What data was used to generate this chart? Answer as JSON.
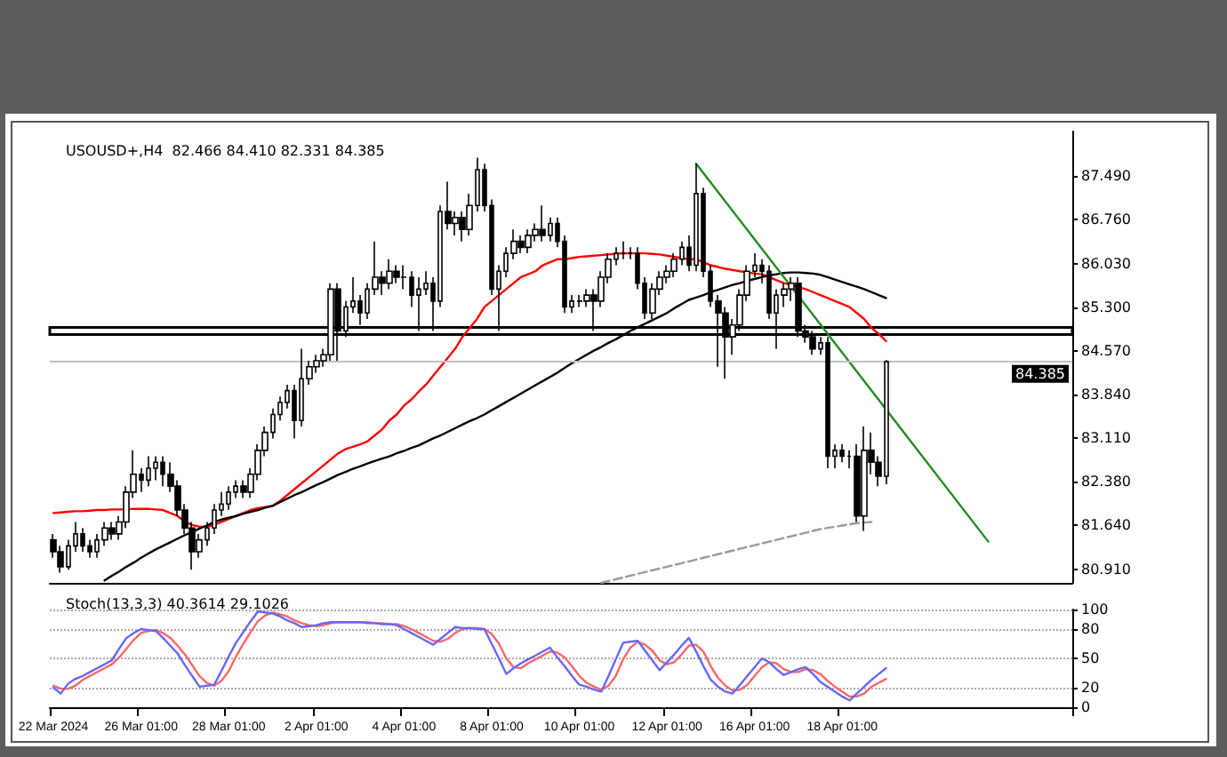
{
  "chart_data": [
    {
      "type": "candlestick",
      "title": "USOUSD+,H4  82.466 84.410 82.331 84.385",
      "categories": [
        null,
        null,
        null,
        null,
        null,
        null,
        null,
        null,
        null,
        null,
        null,
        null,
        null,
        null,
        null,
        null,
        null,
        null,
        null,
        null,
        null,
        null,
        null,
        null,
        null,
        null,
        null,
        null,
        null,
        null,
        null,
        null,
        null,
        null,
        null,
        null,
        null,
        null,
        null,
        null,
        null,
        null,
        null,
        null,
        null,
        null,
        null,
        null,
        null,
        null,
        null,
        null,
        null,
        null,
        null,
        null,
        null,
        null,
        null,
        null,
        null,
        null,
        null,
        null,
        null,
        null,
        null,
        null,
        null,
        null,
        null,
        null,
        null,
        null,
        null,
        null,
        null,
        null,
        null,
        null,
        null,
        null,
        null,
        null,
        null,
        null,
        null,
        null,
        null,
        null,
        null,
        null,
        null,
        null,
        null,
        null,
        null,
        null,
        null,
        null,
        null,
        null,
        null,
        null,
        null,
        null,
        null,
        null,
        null,
        null,
        null,
        null,
        null,
        null,
        null,
        null,
        null,
        null,
        null,
        null,
        null,
        null,
        null,
        null,
        null,
        null,
        null,
        null,
        null,
        null,
        null,
        null,
        null,
        null,
        null,
        null,
        null,
        null,
        null,
        null
      ],
      "ohlc": [
        [
          81.4,
          81.5,
          81.1,
          81.2
        ],
        [
          81.2,
          81.3,
          80.85,
          80.95
        ],
        [
          80.95,
          81.4,
          80.9,
          81.3
        ],
        [
          81.3,
          81.7,
          81.2,
          81.5
        ],
        [
          81.5,
          81.6,
          81.2,
          81.3
        ],
        [
          81.3,
          81.4,
          81.1,
          81.2
        ],
        [
          81.2,
          81.5,
          81.1,
          81.4
        ],
        [
          81.4,
          81.7,
          81.3,
          81.6
        ],
        [
          81.6,
          81.7,
          81.4,
          81.5
        ],
        [
          81.5,
          81.8,
          81.4,
          81.7
        ],
        [
          81.7,
          82.3,
          81.6,
          82.2
        ],
        [
          82.2,
          82.9,
          82.1,
          82.5
        ],
        [
          82.5,
          82.6,
          82.2,
          82.4
        ],
        [
          82.4,
          82.8,
          82.3,
          82.6
        ],
        [
          82.6,
          82.8,
          82.4,
          82.7
        ],
        [
          82.7,
          82.8,
          82.3,
          82.5
        ],
        [
          82.5,
          82.7,
          82.2,
          82.3
        ],
        [
          82.3,
          82.4,
          81.8,
          81.9
        ],
        [
          81.9,
          82.0,
          81.5,
          81.6
        ],
        [
          81.6,
          81.7,
          80.9,
          81.2
        ],
        [
          81.2,
          81.5,
          81.1,
          81.4
        ],
        [
          81.4,
          81.7,
          81.3,
          81.6
        ],
        [
          81.6,
          82.0,
          81.5,
          81.9
        ],
        [
          81.9,
          82.2,
          81.8,
          82.0
        ],
        [
          82.0,
          82.3,
          81.9,
          82.2
        ],
        [
          82.2,
          82.4,
          82.1,
          82.3
        ],
        [
          82.3,
          82.4,
          82.1,
          82.2
        ],
        [
          82.2,
          82.6,
          82.1,
          82.5
        ],
        [
          82.5,
          83.0,
          82.4,
          82.9
        ],
        [
          82.9,
          83.3,
          82.8,
          83.2
        ],
        [
          83.2,
          83.6,
          83.1,
          83.5
        ],
        [
          83.5,
          83.8,
          83.4,
          83.7
        ],
        [
          83.7,
          84.0,
          83.6,
          83.9
        ],
        [
          83.9,
          84.0,
          83.1,
          83.4
        ],
        [
          83.4,
          84.6,
          83.3,
          84.1
        ],
        [
          84.1,
          84.4,
          84.0,
          84.3
        ],
        [
          84.3,
          84.5,
          84.2,
          84.4
        ],
        [
          84.4,
          84.6,
          84.3,
          84.5
        ],
        [
          84.5,
          85.7,
          84.4,
          85.6
        ],
        [
          85.6,
          85.7,
          84.4,
          84.9
        ],
        [
          84.9,
          85.4,
          84.8,
          85.3
        ],
        [
          85.3,
          85.8,
          85.2,
          85.4
        ],
        [
          85.4,
          85.5,
          85.0,
          85.2
        ],
        [
          85.2,
          85.7,
          85.1,
          85.6
        ],
        [
          85.6,
          86.4,
          85.5,
          85.8
        ],
        [
          85.8,
          85.9,
          85.5,
          85.7
        ],
        [
          85.7,
          86.1,
          85.6,
          85.9
        ],
        [
          85.9,
          86.0,
          85.7,
          85.8
        ],
        [
          85.8,
          86.0,
          85.6,
          85.8
        ],
        [
          85.8,
          85.9,
          85.3,
          85.5
        ],
        [
          85.5,
          85.8,
          84.9,
          85.6
        ],
        [
          85.6,
          85.9,
          85.5,
          85.7
        ],
        [
          85.7,
          85.8,
          84.9,
          85.4
        ],
        [
          85.4,
          87.0,
          85.3,
          86.9
        ],
        [
          86.9,
          87.4,
          86.6,
          86.7
        ],
        [
          86.7,
          86.9,
          86.5,
          86.8
        ],
        [
          86.8,
          86.9,
          86.4,
          86.6
        ],
        [
          86.6,
          87.2,
          86.5,
          87.0
        ],
        [
          87.0,
          87.8,
          86.9,
          87.6
        ],
        [
          87.6,
          87.7,
          86.9,
          87.0
        ],
        [
          87.0,
          87.1,
          85.5,
          85.6
        ],
        [
          85.6,
          86.0,
          84.9,
          85.9
        ],
        [
          85.9,
          86.3,
          85.8,
          86.2
        ],
        [
          86.2,
          86.6,
          86.1,
          86.4
        ],
        [
          86.4,
          86.5,
          86.2,
          86.3
        ],
        [
          86.3,
          86.6,
          86.2,
          86.5
        ],
        [
          86.5,
          86.7,
          86.4,
          86.6
        ],
        [
          86.6,
          87.0,
          86.4,
          86.5
        ],
        [
          86.5,
          86.8,
          86.4,
          86.7
        ],
        [
          86.7,
          86.8,
          86.3,
          86.4
        ],
        [
          86.4,
          86.5,
          85.2,
          85.3
        ],
        [
          85.3,
          85.5,
          85.2,
          85.4
        ],
        [
          85.4,
          85.5,
          85.3,
          85.4
        ],
        [
          85.4,
          85.6,
          85.3,
          85.5
        ],
        [
          85.5,
          85.6,
          84.9,
          85.4
        ],
        [
          85.4,
          85.9,
          85.3,
          85.8
        ],
        [
          85.8,
          86.2,
          85.7,
          86.1
        ],
        [
          86.1,
          86.3,
          86.0,
          86.2
        ],
        [
          86.2,
          86.4,
          86.1,
          86.2
        ],
        [
          86.2,
          86.3,
          86.1,
          86.2
        ],
        [
          86.2,
          86.3,
          85.6,
          85.7
        ],
        [
          85.7,
          85.8,
          85.1,
          85.2
        ],
        [
          85.2,
          85.7,
          85.1,
          85.6
        ],
        [
          85.6,
          85.9,
          85.5,
          85.8
        ],
        [
          85.8,
          86.0,
          85.7,
          85.9
        ],
        [
          85.9,
          86.2,
          85.8,
          86.1
        ],
        [
          86.1,
          86.4,
          86.0,
          86.3
        ],
        [
          86.3,
          86.5,
          85.9,
          86.0
        ],
        [
          86.0,
          87.7,
          85.9,
          87.2
        ],
        [
          87.2,
          87.3,
          85.8,
          85.9
        ],
        [
          85.9,
          86.0,
          85.3,
          85.4
        ],
        [
          85.4,
          85.5,
          84.3,
          85.2
        ],
        [
          85.2,
          85.3,
          84.1,
          84.8
        ],
        [
          84.8,
          85.1,
          84.5,
          85.0
        ],
        [
          85.0,
          85.6,
          84.9,
          85.5
        ],
        [
          85.5,
          86.0,
          85.4,
          85.9
        ],
        [
          85.9,
          86.2,
          85.8,
          86.0
        ],
        [
          86.0,
          86.1,
          85.7,
          85.9
        ],
        [
          85.9,
          86.0,
          85.1,
          85.2
        ],
        [
          85.2,
          85.6,
          84.6,
          85.5
        ],
        [
          85.5,
          85.7,
          85.3,
          85.6
        ],
        [
          85.6,
          85.8,
          85.4,
          85.7
        ],
        [
          85.7,
          85.8,
          84.8,
          84.9
        ],
        [
          84.9,
          85.0,
          84.7,
          84.8
        ],
        [
          84.8,
          84.9,
          84.5,
          84.6
        ],
        [
          84.6,
          84.8,
          84.5,
          84.7
        ],
        [
          84.7,
          84.8,
          82.6,
          82.8
        ],
        [
          82.8,
          83.0,
          82.6,
          82.9
        ],
        [
          82.9,
          83.0,
          82.7,
          82.8
        ],
        [
          82.8,
          82.9,
          82.6,
          82.8
        ],
        [
          82.8,
          83.0,
          81.7,
          81.8
        ],
        [
          81.8,
          83.3,
          81.55,
          82.9
        ],
        [
          82.9,
          83.2,
          82.5,
          82.7
        ],
        [
          82.7,
          82.8,
          82.3,
          82.466
        ],
        [
          82.466,
          84.41,
          82.331,
          84.385
        ],
        null,
        null,
        null,
        null,
        null,
        null,
        null,
        null,
        null,
        null,
        null,
        null,
        null,
        null,
        null,
        null,
        null,
        null,
        null,
        null,
        null,
        null,
        null,
        null,
        null
      ],
      "series": [
        {
          "type": "line",
          "color": "#ff0000",
          "values": [
            81.85,
            81.86,
            81.87,
            81.88,
            81.88,
            81.89,
            81.9,
            81.9,
            81.91,
            81.91,
            81.91,
            81.92,
            81.92,
            81.92,
            81.91,
            81.9,
            81.85,
            81.8,
            81.7,
            81.65,
            81.62,
            81.62,
            81.65,
            81.7,
            81.75,
            81.8,
            81.85,
            81.9,
            81.93,
            81.95,
            81.97,
            82.05,
            82.15,
            82.25,
            82.35,
            82.45,
            82.55,
            82.65,
            82.75,
            82.85,
            82.92,
            82.96,
            83.0,
            83.05,
            83.15,
            83.25,
            83.4,
            83.5,
            83.65,
            83.75,
            83.88,
            84.0,
            84.15,
            84.3,
            84.45,
            84.6,
            84.8,
            84.95,
            85.1,
            85.3,
            85.4,
            85.5,
            85.6,
            85.7,
            85.8,
            85.85,
            85.9,
            86.0,
            86.05,
            86.1,
            86.1,
            86.12,
            86.14,
            86.15,
            86.16,
            86.17,
            86.18,
            86.19,
            86.2,
            86.2,
            86.2,
            86.2,
            86.19,
            86.18,
            86.16,
            86.14,
            86.12,
            86.1,
            86.1,
            86.05,
            86.0,
            85.97,
            85.94,
            85.92,
            85.9,
            85.88,
            85.86,
            85.85,
            85.8,
            85.75,
            85.7,
            85.67,
            85.63,
            85.6,
            85.55,
            85.5,
            85.45,
            85.4,
            85.35,
            85.3,
            85.2,
            85.1,
            84.95,
            84.85,
            84.73,
            null,
            null,
            null,
            null,
            null,
            null,
            null,
            null,
            null,
            null,
            null,
            null,
            null,
            null,
            null,
            null,
            null,
            null,
            null,
            null,
            null,
            null,
            null,
            null,
            null
          ]
        },
        {
          "type": "line",
          "color": "#000000",
          "values": [
            null,
            null,
            null,
            null,
            null,
            null,
            null,
            80.72,
            80.8,
            80.87,
            80.95,
            81.02,
            81.1,
            81.17,
            81.24,
            81.3,
            81.36,
            81.42,
            81.48,
            81.53,
            81.59,
            81.64,
            81.7,
            81.74,
            81.77,
            81.8,
            81.84,
            81.87,
            81.9,
            81.94,
            81.97,
            82.03,
            82.09,
            82.15,
            82.2,
            82.26,
            82.32,
            82.37,
            82.43,
            82.49,
            82.54,
            82.59,
            82.63,
            82.68,
            82.72,
            82.76,
            82.8,
            82.85,
            82.89,
            82.94,
            82.98,
            83.04,
            83.1,
            83.15,
            83.21,
            83.27,
            83.33,
            83.39,
            83.44,
            83.5,
            83.57,
            83.64,
            83.71,
            83.78,
            83.85,
            83.92,
            83.99,
            84.06,
            84.13,
            84.2,
            84.28,
            84.36,
            84.43,
            84.5,
            84.57,
            84.63,
            84.7,
            84.76,
            84.83,
            84.9,
            84.96,
            85.02,
            85.08,
            85.14,
            85.2,
            85.28,
            85.35,
            85.42,
            85.46,
            85.5,
            85.55,
            85.59,
            85.63,
            85.67,
            85.7,
            85.74,
            85.77,
            85.8,
            85.83,
            85.85,
            85.87,
            85.88,
            85.88,
            85.87,
            85.86,
            85.84,
            85.8,
            85.76,
            85.72,
            85.68,
            85.64,
            85.6,
            85.55,
            85.5,
            85.45,
            null,
            null,
            null,
            null,
            null,
            null,
            null,
            null,
            null,
            null,
            null,
            null,
            null,
            null,
            null,
            null,
            null,
            null,
            null,
            null,
            null,
            null,
            null,
            null,
            null
          ]
        },
        {
          "type": "line",
          "color": "#999999",
          "line_style": "dashed",
          "values": [
            null,
            null,
            null,
            null,
            null,
            null,
            null,
            null,
            null,
            null,
            null,
            null,
            null,
            null,
            null,
            null,
            null,
            null,
            null,
            null,
            null,
            null,
            null,
            null,
            null,
            null,
            null,
            null,
            null,
            null,
            null,
            null,
            null,
            null,
            null,
            null,
            null,
            null,
            null,
            null,
            null,
            null,
            null,
            null,
            null,
            null,
            null,
            null,
            null,
            null,
            null,
            null,
            null,
            null,
            null,
            null,
            null,
            null,
            null,
            null,
            null,
            null,
            null,
            null,
            null,
            null,
            null,
            null,
            null,
            null,
            null,
            null,
            null,
            null,
            null,
            80.68,
            80.71,
            80.74,
            80.77,
            80.8,
            80.83,
            80.86,
            80.89,
            80.92,
            80.95,
            80.98,
            81.01,
            81.04,
            81.07,
            81.1,
            81.13,
            81.16,
            81.19,
            81.22,
            81.25,
            81.28,
            81.31,
            81.34,
            81.37,
            81.4,
            81.43,
            81.46,
            81.49,
            81.52,
            81.55,
            81.58,
            81.6,
            81.62,
            81.64,
            81.66,
            81.68,
            81.69,
            81.7,
            null,
            null,
            null,
            null,
            null,
            null,
            null,
            null,
            null,
            null,
            null,
            null,
            null,
            null,
            null,
            null,
            null,
            null,
            null,
            null,
            null,
            null,
            null,
            null,
            null,
            null,
            null
          ]
        },
        {
          "type": "line",
          "color": "#228b22",
          "values": [
            null,
            null,
            null,
            null,
            null,
            null,
            null,
            null,
            null,
            null,
            null,
            null,
            null,
            null,
            null,
            null,
            null,
            null,
            null,
            null,
            null,
            null,
            null,
            null,
            null,
            null,
            null,
            null,
            null,
            null,
            null,
            null,
            null,
            null,
            null,
            null,
            null,
            null,
            null,
            null,
            null,
            null,
            null,
            null,
            null,
            null,
            null,
            null,
            null,
            null,
            null,
            null,
            null,
            null,
            null,
            null,
            null,
            null,
            null,
            null,
            null,
            null,
            null,
            null,
            null,
            null,
            null,
            null,
            null,
            null,
            null,
            null,
            null,
            null,
            null,
            null,
            null,
            null,
            null,
            null,
            null,
            null,
            null,
            null,
            null,
            null,
            null,
            null,
            87.7,
            null,
            null,
            null,
            null,
            null,
            null,
            null,
            null,
            null,
            null,
            null,
            null,
            null,
            null,
            null,
            null,
            null,
            null,
            null,
            null,
            null,
            null,
            null,
            null,
            null,
            null,
            null,
            null,
            null,
            null,
            null,
            null,
            null,
            null,
            null,
            null,
            null,
            null,
            null,
            81.37,
            null,
            null,
            null,
            null,
            null,
            null,
            null,
            null,
            null,
            null,
            null
          ]
        }
      ],
      "ylim": [
        80.68,
        88.24
      ],
      "yticks": [
        {
          "value": 80.91,
          "label": "80.910"
        },
        {
          "value": 81.64,
          "label": "81.640"
        },
        {
          "value": 82.38,
          "label": "82.380"
        },
        {
          "value": 83.11,
          "label": "83.110"
        },
        {
          "value": 83.84,
          "label": "83.840"
        },
        {
          "value": 84.57,
          "label": "84.570"
        },
        {
          "value": 85.3,
          "label": "85.300"
        },
        {
          "value": 86.03,
          "label": "86.030"
        },
        {
          "value": 86.76,
          "label": "86.760"
        },
        {
          "value": 87.49,
          "label": "87.490"
        }
      ],
      "ref_lines": [
        {
          "axis": "y",
          "value": 84.385,
          "label": "84.385",
          "color": "#c0c0c0"
        }
      ],
      "bands": [
        {
          "axis": "y",
          "from": 84.84,
          "to": 84.96
        }
      ],
      "tick_labels": "y"
    },
    {
      "type": "line",
      "title": "Stoch(13,3,3) 40.3614 29.1026",
      "categories": [
        "22 Mar 2024",
        null,
        null,
        null,
        null,
        null,
        null,
        null,
        null,
        null,
        null,
        null,
        "26 Mar 01:00",
        null,
        null,
        null,
        null,
        null,
        null,
        null,
        null,
        null,
        null,
        null,
        "28 Mar 01:00",
        null,
        null,
        null,
        null,
        null,
        null,
        null,
        null,
        null,
        null,
        null,
        "2 Apr 01:00",
        null,
        null,
        null,
        null,
        null,
        null,
        null,
        null,
        null,
        null,
        null,
        "4 Apr 01:00",
        null,
        null,
        null,
        null,
        null,
        null,
        null,
        null,
        null,
        null,
        null,
        "8 Apr 01:00",
        null,
        null,
        null,
        null,
        null,
        null,
        null,
        null,
        null,
        null,
        null,
        "10 Apr 01:00",
        null,
        null,
        null,
        null,
        null,
        null,
        null,
        null,
        null,
        null,
        null,
        "12 Apr 01:00",
        null,
        null,
        null,
        null,
        null,
        null,
        null,
        null,
        null,
        null,
        null,
        "16 Apr 01:00",
        null,
        null,
        null,
        null,
        null,
        null,
        null,
        null,
        null,
        null,
        null,
        "18 Apr 01:00",
        null,
        null,
        null,
        null,
        null,
        null,
        null,
        null,
        null,
        null,
        null,
        null,
        null,
        null,
        null,
        null,
        null,
        null,
        null,
        null,
        null,
        null,
        null,
        null,
        null,
        null,
        null,
        null,
        null,
        null,
        null
      ],
      "series": [
        {
          "color": "#ff6666",
          "values": [
            22,
            19,
            19,
            22,
            28,
            32,
            36,
            40,
            44,
            51,
            60,
            69,
            76,
            78,
            79,
            76,
            71,
            63,
            54,
            43,
            32,
            25,
            22,
            27,
            37,
            52,
            65,
            77,
            88,
            94,
            97,
            95,
            93,
            89,
            86,
            84,
            83,
            84,
            86,
            87,
            87,
            87,
            87,
            87,
            86,
            86,
            85,
            85,
            83,
            80,
            76,
            72,
            68,
            67,
            70,
            76,
            80,
            81,
            81,
            80,
            75,
            65,
            50,
            41,
            40,
            45,
            49,
            53,
            57,
            56,
            51,
            42,
            32,
            25,
            21,
            18,
            22,
            32,
            49,
            61,
            67,
            64,
            58,
            48,
            44,
            46,
            54,
            63,
            64,
            57,
            42,
            30,
            22,
            17,
            18,
            23,
            32,
            41,
            46,
            45,
            39,
            36,
            36,
            39,
            38,
            34,
            27,
            21,
            16,
            11,
            11,
            14,
            21,
            25,
            29,
            null,
            null,
            null,
            null,
            null,
            null,
            null,
            null,
            null,
            null,
            null,
            null,
            null,
            null,
            null,
            null,
            null,
            null,
            null,
            null,
            null,
            null,
            null,
            null,
            null
          ]
        },
        {
          "color": "#6666ff",
          "values": [
            20,
            14,
            24,
            29,
            32,
            36,
            40,
            44,
            48,
            60,
            71,
            76,
            80,
            79,
            78,
            71,
            63,
            55,
            43,
            32,
            21,
            22,
            23,
            37,
            52,
            66,
            77,
            88,
            98,
            97,
            96,
            93,
            89,
            86,
            82,
            83,
            84,
            86,
            87,
            87,
            87,
            87,
            87,
            86,
            86,
            85,
            85,
            84,
            80,
            76,
            72,
            68,
            64,
            70,
            76,
            82,
            81,
            81,
            80,
            80,
            65,
            50,
            34,
            40,
            45,
            49,
            53,
            57,
            61,
            51,
            42,
            32,
            23,
            21,
            18,
            16,
            32,
            49,
            66,
            67,
            68,
            58,
            48,
            38,
            46,
            54,
            63,
            71,
            57,
            42,
            28,
            21,
            16,
            14,
            23,
            32,
            41,
            50,
            46,
            39,
            33,
            36,
            39,
            41,
            34,
            26,
            21,
            16,
            11,
            7,
            14,
            21,
            28,
            34,
            40,
            null,
            null,
            null,
            null,
            null,
            null,
            null,
            null,
            null,
            null,
            null,
            null,
            null,
            null,
            null,
            null,
            null,
            null,
            null,
            null,
            null,
            null,
            null,
            null,
            null
          ]
        }
      ],
      "ylim": [
        0,
        100
      ],
      "yticks": [
        0,
        20,
        50,
        80,
        100
      ],
      "grid": "y",
      "line_style": "solid"
    }
  ]
}
